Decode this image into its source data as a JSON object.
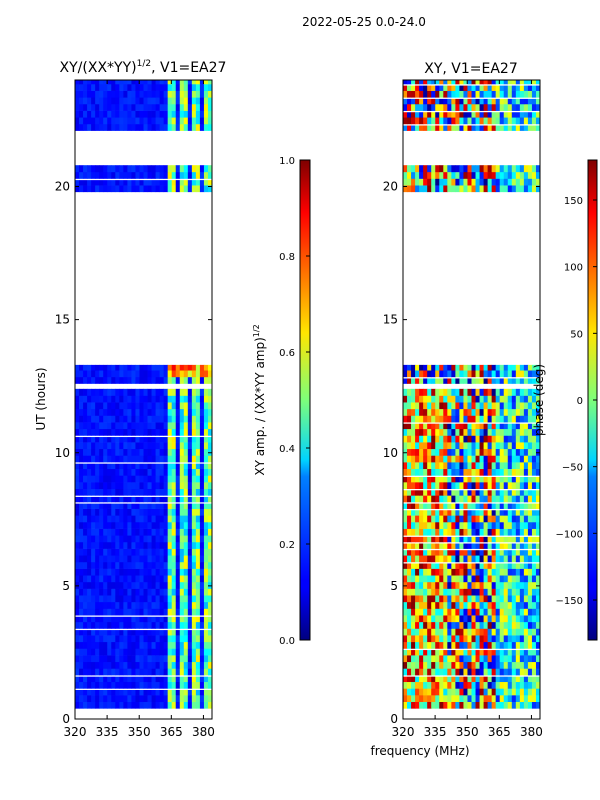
{
  "suptitle": "2022-05-25 0.0-24.0",
  "xlabel": "frequency (MHz)",
  "chart_data": [
    {
      "type": "heatmap",
      "title": "XY/(XX*YY)",
      "title_sup": "1/2",
      "title_tail": ", V1=EA27",
      "ylabel": "UT (hours)",
      "xlim": [
        320,
        384
      ],
      "ylim": [
        0,
        24
      ],
      "xticks": [
        "320",
        "335",
        "350",
        "365",
        "380"
      ],
      "xtick_values": [
        320,
        335,
        350,
        365,
        380
      ],
      "yticks": [
        "0",
        "5",
        "10",
        "15",
        "20"
      ],
      "ytick_values": [
        0,
        5,
        10,
        15,
        20
      ],
      "data_time_ranges": [
        [
          0.4,
          12.4
        ],
        [
          12.6,
          13.3
        ],
        [
          19.8,
          20.8
        ],
        [
          22.1,
          24
        ]
      ],
      "colorbar": {
        "label": "XY amp. / (XX*YY amp)",
        "label_sup": "1/2",
        "range": [
          0.0,
          1.0
        ],
        "ticks": [
          "0.0",
          "0.2",
          "0.4",
          "0.6",
          "0.8",
          "1.0"
        ],
        "tick_values": [
          0,
          0.2,
          0.4,
          0.6,
          0.8,
          1.0
        ]
      }
    },
    {
      "type": "heatmap",
      "title": "XY, V1=EA27",
      "ylabel": "phase (deg)",
      "xlim": [
        320,
        384
      ],
      "ylim": [
        0,
        24
      ],
      "xticks": [
        "320",
        "335",
        "350",
        "365",
        "380"
      ],
      "xtick_values": [
        320,
        335,
        350,
        365,
        380
      ],
      "yticks": [
        "0",
        "5",
        "10",
        "15",
        "20"
      ],
      "ytick_values": [
        0,
        5,
        10,
        15,
        20
      ],
      "data_time_ranges": [
        [
          0.4,
          12.4
        ],
        [
          12.6,
          13.3
        ],
        [
          19.8,
          20.8
        ],
        [
          22.1,
          24
        ]
      ],
      "colorbar": {
        "label": "phase (deg)",
        "range": [
          -180,
          180
        ],
        "ticks": [
          "−150",
          "−100",
          "−50",
          "0",
          "50",
          "100",
          "150"
        ],
        "tick_values": [
          -150,
          -100,
          -50,
          0,
          50,
          100,
          150
        ]
      }
    }
  ]
}
